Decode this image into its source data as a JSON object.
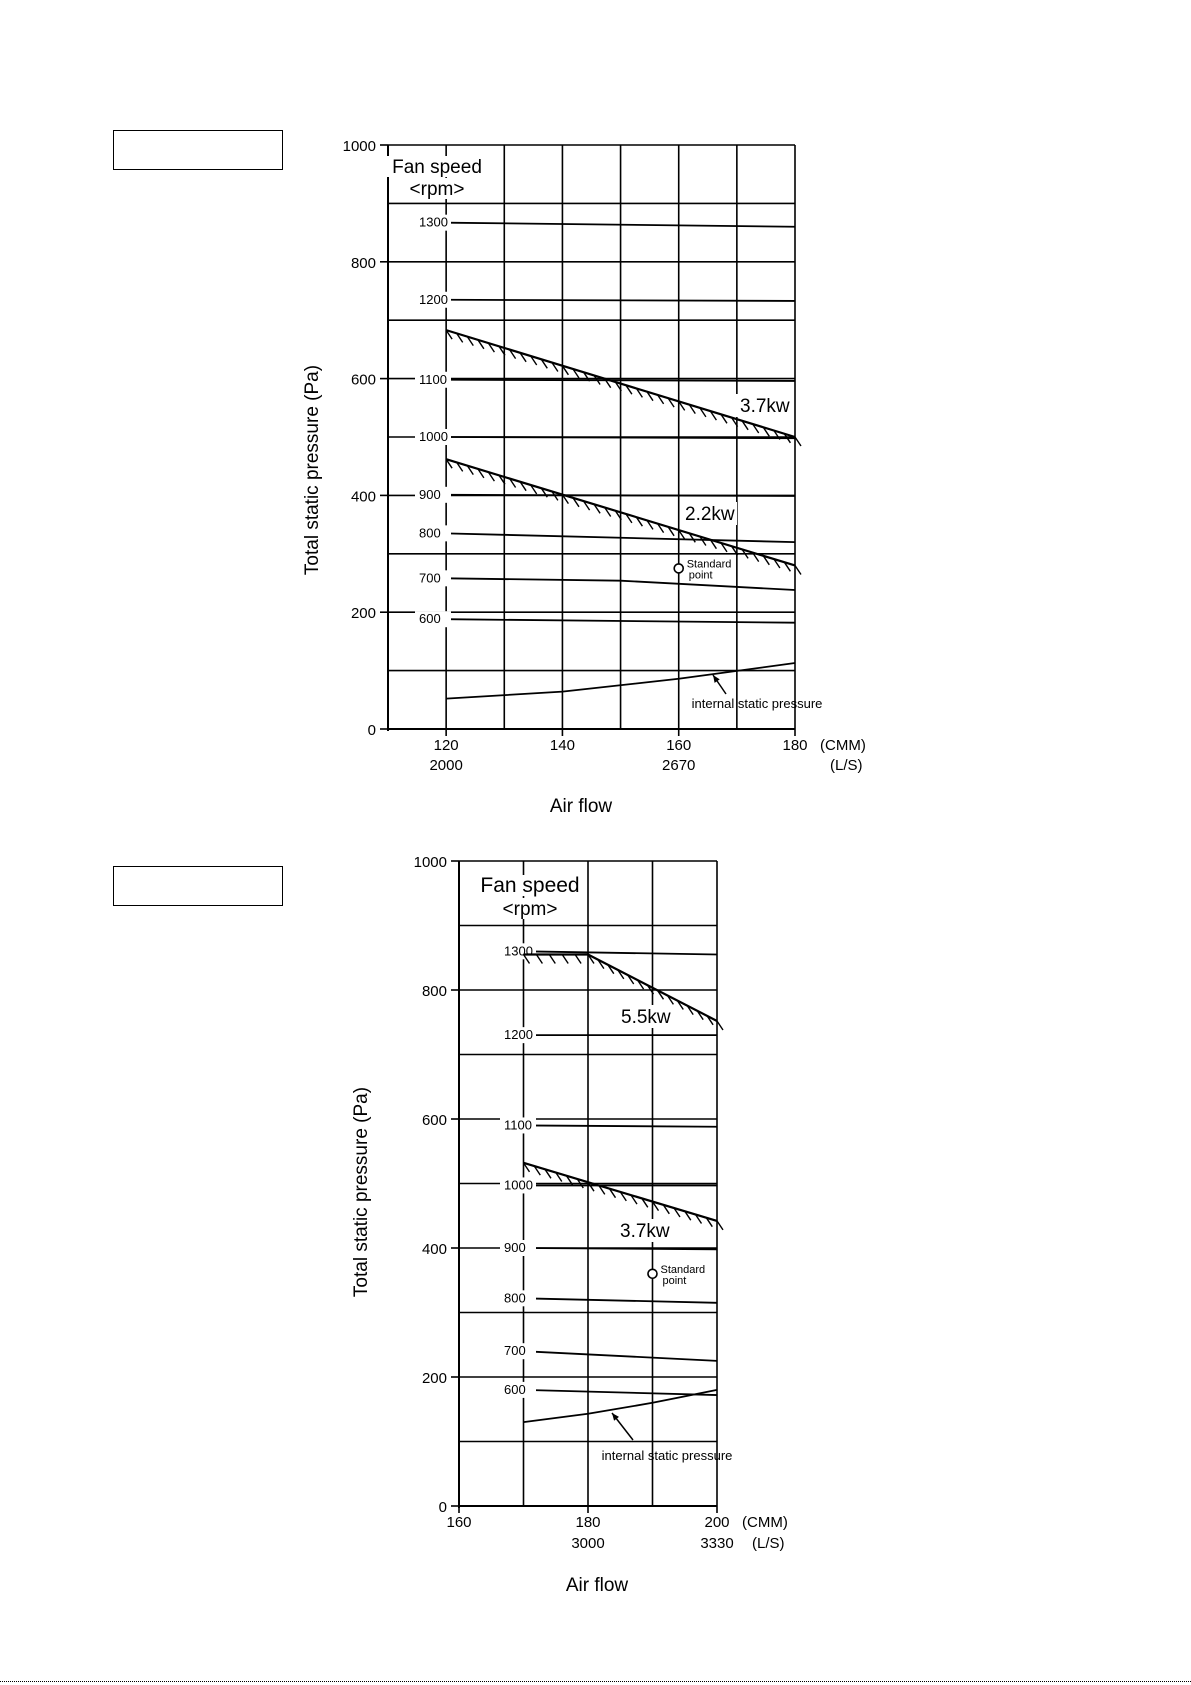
{
  "page": {
    "box_labels": [
      "",
      ""
    ]
  },
  "chart_data": [
    {
      "type": "line",
      "title": "",
      "xlabel": "Air flow",
      "ylabel": "Total static pressure (Pa)",
      "legend_title": [
        "Fan speed",
        "<rpm>"
      ],
      "xlim": [
        110,
        180
      ],
      "ylim": [
        0,
        1000
      ],
      "x_ticks": [
        {
          "x": 120,
          "cmm": "120",
          "ls": "2000"
        },
        {
          "x": 140,
          "cmm": "140",
          "ls": ""
        },
        {
          "x": 160,
          "cmm": "160",
          "ls": "2670"
        },
        {
          "x": 180,
          "cmm": "180",
          "ls": ""
        }
      ],
      "x_units": [
        "(CMM)",
        "(L/S)"
      ],
      "y_ticks": [
        0,
        200,
        400,
        600,
        800,
        1000
      ],
      "x_grid": [
        120,
        130,
        140,
        150,
        160,
        170,
        180
      ],
      "y_grid": [
        0,
        100,
        200,
        300,
        400,
        500,
        600,
        700,
        800,
        900,
        1000
      ],
      "series": [
        {
          "name": "1300",
          "x": [
            120,
            180
          ],
          "y": [
            867,
            860
          ]
        },
        {
          "name": "1200",
          "x": [
            120,
            180
          ],
          "y": [
            735,
            733
          ]
        },
        {
          "name": "1100",
          "x": [
            120,
            180
          ],
          "y": [
            598,
            596
          ]
        },
        {
          "name": "1000",
          "x": [
            120,
            180
          ],
          "y": [
            500,
            498
          ]
        },
        {
          "name": "900",
          "x": [
            120,
            180
          ],
          "y": [
            401,
            399
          ]
        },
        {
          "name": "800",
          "x": [
            120,
            180
          ],
          "y": [
            335,
            320
          ]
        },
        {
          "name": "700",
          "x": [
            120,
            150,
            180
          ],
          "y": [
            258,
            254,
            238
          ]
        },
        {
          "name": "600",
          "x": [
            120,
            180
          ],
          "y": [
            188,
            182
          ]
        },
        {
          "name": "internal static pressure",
          "x": [
            120,
            140,
            160,
            180
          ],
          "y": [
            52,
            64,
            86,
            113
          ]
        }
      ],
      "limit_lines": [
        {
          "name": "3.7kw",
          "x": [
            120,
            180
          ],
          "y": [
            683,
            500
          ]
        },
        {
          "name": "2.2kw",
          "x": [
            120,
            180
          ],
          "y": [
            462,
            280
          ]
        }
      ],
      "points": [
        {
          "name": "Standard point",
          "label": [
            "Standard",
            "point"
          ],
          "x": 160,
          "y": 275
        }
      ],
      "annotations": [
        {
          "text": "internal static pressure"
        }
      ]
    },
    {
      "type": "line",
      "title": "",
      "xlabel": "Air flow",
      "ylabel": "Total static pressure (Pa)",
      "legend_title": [
        "Fan speed",
        "<rpm>"
      ],
      "xlim": [
        160,
        200
      ],
      "ylim": [
        0,
        1000
      ],
      "x_ticks": [
        {
          "x": 160,
          "cmm": "160",
          "ls": ""
        },
        {
          "x": 180,
          "cmm": "180",
          "ls": "3000"
        },
        {
          "x": 200,
          "cmm": "200",
          "ls": "3330"
        }
      ],
      "x_units": [
        "(CMM)",
        "(L/S)"
      ],
      "y_ticks": [
        0,
        200,
        400,
        600,
        800,
        1000
      ],
      "x_grid": [
        170,
        180,
        190,
        200
      ],
      "y_grid": [
        100,
        200,
        300,
        400,
        500,
        600,
        700,
        800,
        900,
        1000
      ],
      "series": [
        {
          "name": "1300",
          "x": [
            170,
            200
          ],
          "y": [
            860,
            855
          ]
        },
        {
          "name": "1200",
          "x": [
            170,
            200
          ],
          "y": [
            730,
            730
          ]
        },
        {
          "name": "1100",
          "x": [
            170,
            200
          ],
          "y": [
            590,
            588
          ]
        },
        {
          "name": "1000",
          "x": [
            170,
            200
          ],
          "y": [
            497,
            497
          ]
        },
        {
          "name": "900",
          "x": [
            170,
            200
          ],
          "y": [
            400,
            398
          ]
        },
        {
          "name": "800",
          "x": [
            170,
            200
          ],
          "y": [
            322,
            315
          ]
        },
        {
          "name": "700",
          "x": [
            170,
            200
          ],
          "y": [
            240,
            225
          ]
        },
        {
          "name": "600",
          "x": [
            170,
            200
          ],
          "y": [
            180,
            172
          ]
        },
        {
          "name": "internal static pressure",
          "x": [
            170,
            180,
            190,
            200
          ],
          "y": [
            130,
            143,
            160,
            180
          ]
        }
      ],
      "limit_lines": [
        {
          "name": "5.5kw",
          "x": [
            170,
            180,
            200
          ],
          "y": [
            855,
            855,
            752
          ]
        },
        {
          "name": "3.7kw",
          "x": [
            170,
            200
          ],
          "y": [
            532,
            442
          ]
        }
      ],
      "points": [
        {
          "name": "Standard point",
          "label": [
            "Standard",
            "point"
          ],
          "x": 190,
          "y": 360
        }
      ],
      "annotations": [
        {
          "text": "internal static pressure"
        }
      ]
    }
  ]
}
